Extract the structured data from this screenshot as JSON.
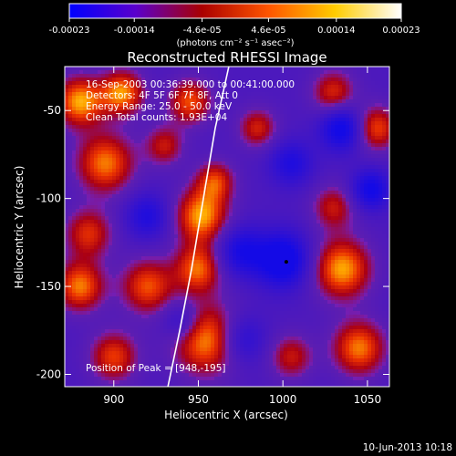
{
  "colorbar": {
    "tick_labels": [
      "-0.00023",
      "-0.00014",
      "-4.6e-05",
      "4.6e-05",
      "0.00014",
      "0.00023"
    ],
    "tick_values": [
      -0.00023,
      -0.00014,
      -4.6e-05,
      4.6e-05,
      0.00014,
      0.00023
    ],
    "range": [
      -0.00023,
      0.00023
    ],
    "unit_label": "(photons cm⁻² s⁻¹ asec⁻²)",
    "colors": [
      "#0000ff",
      "#5a00cc",
      "#aa0000",
      "#ff5500",
      "#ffcc00",
      "#ffffff"
    ]
  },
  "chart_data": {
    "type": "heatmap",
    "title": "Reconstructed RHESSI Image",
    "xlabel": "Heliocentric X (arcsec)",
    "ylabel": "Heliocentric Y (arcsec)",
    "xlim": [
      871,
      1063
    ],
    "ylim": [
      -207,
      -25
    ],
    "xticks": [
      900,
      950,
      1000,
      1050
    ],
    "yticks": [
      -50,
      -100,
      -150,
      -200
    ],
    "info_lines": [
      "16-Sep-2003 00:36:39.000 to 00:41:00.000",
      "Detectors: 4F 5F 6F 7F 8F, Att 0",
      "Energy Range: 25.0 - 50.0 keV",
      "Clean    Total counts: 1.93E+04"
    ],
    "peak_text": "Position of Peak = [948,-195]",
    "peak": [
      948,
      -195
    ],
    "blobs": [
      {
        "x": 880,
        "y": -45,
        "v": 1.0,
        "s": 10
      },
      {
        "x": 905,
        "y": -40,
        "v": 0.95,
        "s": 9
      },
      {
        "x": 945,
        "y": -45,
        "v": 0.8,
        "s": 9
      },
      {
        "x": 895,
        "y": -80,
        "v": 0.9,
        "s": 12
      },
      {
        "x": 930,
        "y": -70,
        "v": 0.6,
        "s": 8
      },
      {
        "x": 952,
        "y": -110,
        "v": 1.0,
        "s": 11
      },
      {
        "x": 950,
        "y": -140,
        "v": 0.85,
        "s": 10
      },
      {
        "x": 955,
        "y": -180,
        "v": 1.0,
        "s": 14
      },
      {
        "x": 920,
        "y": -150,
        "v": 0.8,
        "s": 11
      },
      {
        "x": 880,
        "y": -150,
        "v": 0.9,
        "s": 10
      },
      {
        "x": 885,
        "y": -120,
        "v": 0.7,
        "s": 10
      },
      {
        "x": 900,
        "y": -190,
        "v": 0.75,
        "s": 10
      },
      {
        "x": 1035,
        "y": -140,
        "v": 1.0,
        "s": 12
      },
      {
        "x": 1045,
        "y": -185,
        "v": 0.9,
        "s": 11
      },
      {
        "x": 1030,
        "y": -105,
        "v": 0.6,
        "s": 9
      },
      {
        "x": 1055,
        "y": -60,
        "v": 0.8,
        "s": 9
      },
      {
        "x": 1030,
        "y": -40,
        "v": 0.7,
        "s": 9
      },
      {
        "x": 1005,
        "y": -190,
        "v": 0.6,
        "s": 9
      },
      {
        "x": 985,
        "y": -60,
        "v": 0.65,
        "s": 8
      },
      {
        "x": 960,
        "y": -90,
        "v": 0.7,
        "s": 8
      },
      {
        "x": 1000,
        "y": -135,
        "v": -1.0,
        "s": 11
      },
      {
        "x": 1035,
        "y": -60,
        "v": -0.9,
        "s": 9
      },
      {
        "x": 1052,
        "y": -95,
        "v": -0.8,
        "s": 8
      },
      {
        "x": 975,
        "y": -130,
        "v": -0.7,
        "s": 10
      },
      {
        "x": 920,
        "y": -110,
        "v": -0.6,
        "s": 9
      },
      {
        "x": 975,
        "y": -180,
        "v": -0.6,
        "s": 10
      },
      {
        "x": 940,
        "y": -170,
        "v": -0.55,
        "s": 8
      },
      {
        "x": 1005,
        "y": -80,
        "v": -0.6,
        "s": 9
      }
    ],
    "limb_curve": [
      [
        968,
        -25
      ],
      [
        960,
        -60
      ],
      [
        953,
        -100
      ],
      [
        946,
        -140
      ],
      [
        939,
        -175
      ],
      [
        932,
        -207
      ]
    ]
  },
  "footer": {
    "date_text": "10-Jun-2013 10:18"
  }
}
